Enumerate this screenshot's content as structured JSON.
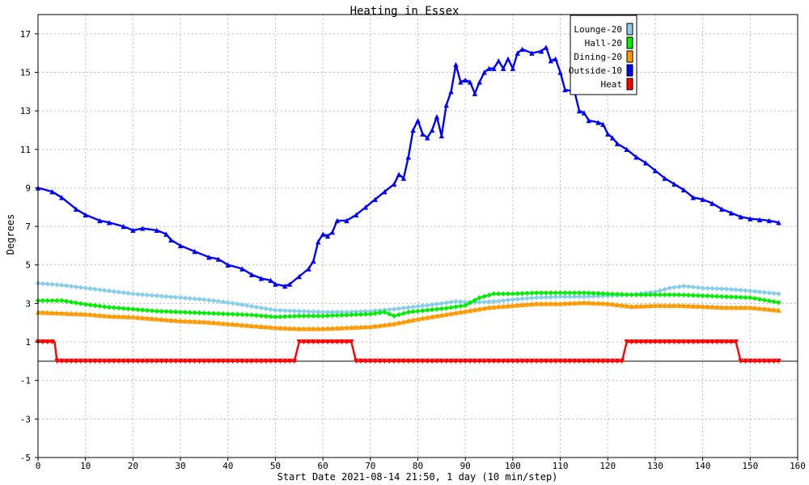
{
  "chart_data": {
    "type": "line",
    "title": "Heating in Essex",
    "xlabel": "Start Date 2021-08-14 21:50, 1 day (10 min/step)",
    "ylabel": "Degrees",
    "xlim": [
      0,
      160
    ],
    "ylim": [
      -5,
      18
    ],
    "xticks": [
      0,
      10,
      20,
      30,
      40,
      50,
      60,
      70,
      80,
      90,
      100,
      110,
      120,
      130,
      140,
      150,
      160
    ],
    "yticks": [
      -5,
      -3,
      -1,
      1,
      3,
      5,
      7,
      9,
      11,
      13,
      15,
      17
    ],
    "grid": true,
    "legend_position": "top-right",
    "series": [
      {
        "name": "Lounge-20",
        "color": "#87ceeb",
        "marker": "diamond",
        "points": [
          [
            0,
            4.05
          ],
          [
            5,
            3.95
          ],
          [
            10,
            3.8
          ],
          [
            15,
            3.65
          ],
          [
            20,
            3.5
          ],
          [
            25,
            3.4
          ],
          [
            30,
            3.3
          ],
          [
            35,
            3.2
          ],
          [
            40,
            3.05
          ],
          [
            45,
            2.85
          ],
          [
            50,
            2.65
          ],
          [
            55,
            2.6
          ],
          [
            60,
            2.55
          ],
          [
            65,
            2.55
          ],
          [
            70,
            2.6
          ],
          [
            75,
            2.7
          ],
          [
            80,
            2.85
          ],
          [
            85,
            3.0
          ],
          [
            88,
            3.1
          ],
          [
            92,
            3.05
          ],
          [
            96,
            3.1
          ],
          [
            100,
            3.2
          ],
          [
            105,
            3.3
          ],
          [
            110,
            3.35
          ],
          [
            115,
            3.35
          ],
          [
            120,
            3.4
          ],
          [
            125,
            3.45
          ],
          [
            130,
            3.6
          ],
          [
            133,
            3.8
          ],
          [
            136,
            3.9
          ],
          [
            140,
            3.8
          ],
          [
            145,
            3.75
          ],
          [
            150,
            3.65
          ],
          [
            156,
            3.5
          ]
        ]
      },
      {
        "name": "Hall-20",
        "color": "#00ee00",
        "marker": "diamond",
        "points": [
          [
            0,
            3.15
          ],
          [
            5,
            3.15
          ],
          [
            10,
            2.95
          ],
          [
            15,
            2.8
          ],
          [
            20,
            2.7
          ],
          [
            25,
            2.6
          ],
          [
            30,
            2.55
          ],
          [
            35,
            2.5
          ],
          [
            40,
            2.45
          ],
          [
            45,
            2.4
          ],
          [
            50,
            2.3
          ],
          [
            55,
            2.35
          ],
          [
            60,
            2.35
          ],
          [
            65,
            2.4
          ],
          [
            70,
            2.45
          ],
          [
            73,
            2.55
          ],
          [
            75,
            2.35
          ],
          [
            78,
            2.55
          ],
          [
            82,
            2.65
          ],
          [
            86,
            2.75
          ],
          [
            90,
            2.9
          ],
          [
            93,
            3.3
          ],
          [
            96,
            3.5
          ],
          [
            100,
            3.5
          ],
          [
            105,
            3.55
          ],
          [
            110,
            3.55
          ],
          [
            115,
            3.55
          ],
          [
            120,
            3.5
          ],
          [
            125,
            3.45
          ],
          [
            130,
            3.45
          ],
          [
            135,
            3.45
          ],
          [
            140,
            3.4
          ],
          [
            145,
            3.35
          ],
          [
            150,
            3.3
          ],
          [
            156,
            3.05
          ]
        ]
      },
      {
        "name": "Dining-20",
        "color": "#ff9900",
        "marker": "triangle",
        "points": [
          [
            0,
            2.55
          ],
          [
            5,
            2.5
          ],
          [
            10,
            2.45
          ],
          [
            15,
            2.35
          ],
          [
            20,
            2.3
          ],
          [
            25,
            2.2
          ],
          [
            30,
            2.1
          ],
          [
            35,
            2.05
          ],
          [
            40,
            1.95
          ],
          [
            45,
            1.85
          ],
          [
            50,
            1.75
          ],
          [
            55,
            1.7
          ],
          [
            60,
            1.7
          ],
          [
            65,
            1.75
          ],
          [
            70,
            1.8
          ],
          [
            75,
            1.95
          ],
          [
            80,
            2.2
          ],
          [
            85,
            2.4
          ],
          [
            90,
            2.6
          ],
          [
            95,
            2.8
          ],
          [
            100,
            2.9
          ],
          [
            105,
            3.0
          ],
          [
            110,
            3.0
          ],
          [
            115,
            3.05
          ],
          [
            120,
            3.0
          ],
          [
            125,
            2.85
          ],
          [
            130,
            2.9
          ],
          [
            135,
            2.9
          ],
          [
            140,
            2.85
          ],
          [
            145,
            2.8
          ],
          [
            150,
            2.8
          ],
          [
            156,
            2.65
          ]
        ]
      },
      {
        "name": "Outside-10",
        "color": "#0000ff",
        "marker": "triangle",
        "points": [
          [
            0,
            9.0
          ],
          [
            3,
            8.8
          ],
          [
            5,
            8.5
          ],
          [
            8,
            7.9
          ],
          [
            10,
            7.6
          ],
          [
            13,
            7.3
          ],
          [
            15,
            7.2
          ],
          [
            18,
            7.0
          ],
          [
            20,
            6.8
          ],
          [
            22,
            6.9
          ],
          [
            25,
            6.8
          ],
          [
            27,
            6.6
          ],
          [
            28,
            6.3
          ],
          [
            30,
            6.0
          ],
          [
            33,
            5.7
          ],
          [
            36,
            5.4
          ],
          [
            38,
            5.3
          ],
          [
            40,
            5.0
          ],
          [
            43,
            4.8
          ],
          [
            45,
            4.5
          ],
          [
            47,
            4.3
          ],
          [
            49,
            4.2
          ],
          [
            50,
            4.0
          ],
          [
            52,
            3.9
          ],
          [
            53,
            4.0
          ],
          [
            55,
            4.4
          ],
          [
            57,
            4.8
          ],
          [
            58,
            5.2
          ],
          [
            59,
            6.2
          ],
          [
            60,
            6.6
          ],
          [
            61,
            6.5
          ],
          [
            62,
            6.7
          ],
          [
            63,
            7.3
          ],
          [
            65,
            7.3
          ],
          [
            67,
            7.6
          ],
          [
            69,
            8.0
          ],
          [
            71,
            8.4
          ],
          [
            73,
            8.8
          ],
          [
            75,
            9.2
          ],
          [
            76,
            9.7
          ],
          [
            77,
            9.5
          ],
          [
            78,
            10.6
          ],
          [
            79,
            12.0
          ],
          [
            80,
            12.5
          ],
          [
            81,
            11.8
          ],
          [
            82,
            11.6
          ],
          [
            83,
            12.0
          ],
          [
            84,
            12.7
          ],
          [
            85,
            11.7
          ],
          [
            86,
            13.3
          ],
          [
            87,
            14.0
          ],
          [
            88,
            15.4
          ],
          [
            89,
            14.5
          ],
          [
            90,
            14.6
          ],
          [
            91,
            14.5
          ],
          [
            92,
            13.9
          ],
          [
            93,
            14.5
          ],
          [
            94,
            15.0
          ],
          [
            95,
            15.2
          ],
          [
            96,
            15.2
          ],
          [
            97,
            15.6
          ],
          [
            98,
            15.2
          ],
          [
            99,
            15.7
          ],
          [
            100,
            15.2
          ],
          [
            101,
            16.0
          ],
          [
            102,
            16.2
          ],
          [
            104,
            16.0
          ],
          [
            106,
            16.1
          ],
          [
            107,
            16.3
          ],
          [
            108,
            15.6
          ],
          [
            109,
            15.7
          ],
          [
            110,
            15.0
          ],
          [
            111,
            14.1
          ],
          [
            113,
            14.0
          ],
          [
            114,
            13.0
          ],
          [
            115,
            12.9
          ],
          [
            116,
            12.5
          ],
          [
            118,
            12.4
          ],
          [
            119,
            12.3
          ],
          [
            120,
            11.8
          ],
          [
            121,
            11.6
          ],
          [
            122,
            11.3
          ],
          [
            124,
            11.0
          ],
          [
            126,
            10.6
          ],
          [
            128,
            10.3
          ],
          [
            130,
            9.9
          ],
          [
            132,
            9.5
          ],
          [
            134,
            9.2
          ],
          [
            136,
            8.9
          ],
          [
            138,
            8.5
          ],
          [
            140,
            8.4
          ],
          [
            142,
            8.2
          ],
          [
            144,
            7.9
          ],
          [
            146,
            7.7
          ],
          [
            148,
            7.5
          ],
          [
            150,
            7.4
          ],
          [
            152,
            7.35
          ],
          [
            154,
            7.3
          ],
          [
            156,
            7.2
          ]
        ]
      },
      {
        "name": "Heat",
        "color": "#ff0000",
        "marker": "triangle-down",
        "points": [
          [
            0,
            1
          ],
          [
            3.5,
            1
          ],
          [
            4,
            0
          ],
          [
            54,
            0
          ],
          [
            55,
            1
          ],
          [
            66,
            1
          ],
          [
            67,
            0
          ],
          [
            123,
            0
          ],
          [
            124,
            1
          ],
          [
            147,
            1
          ],
          [
            148,
            0
          ],
          [
            156,
            0
          ]
        ]
      }
    ]
  }
}
